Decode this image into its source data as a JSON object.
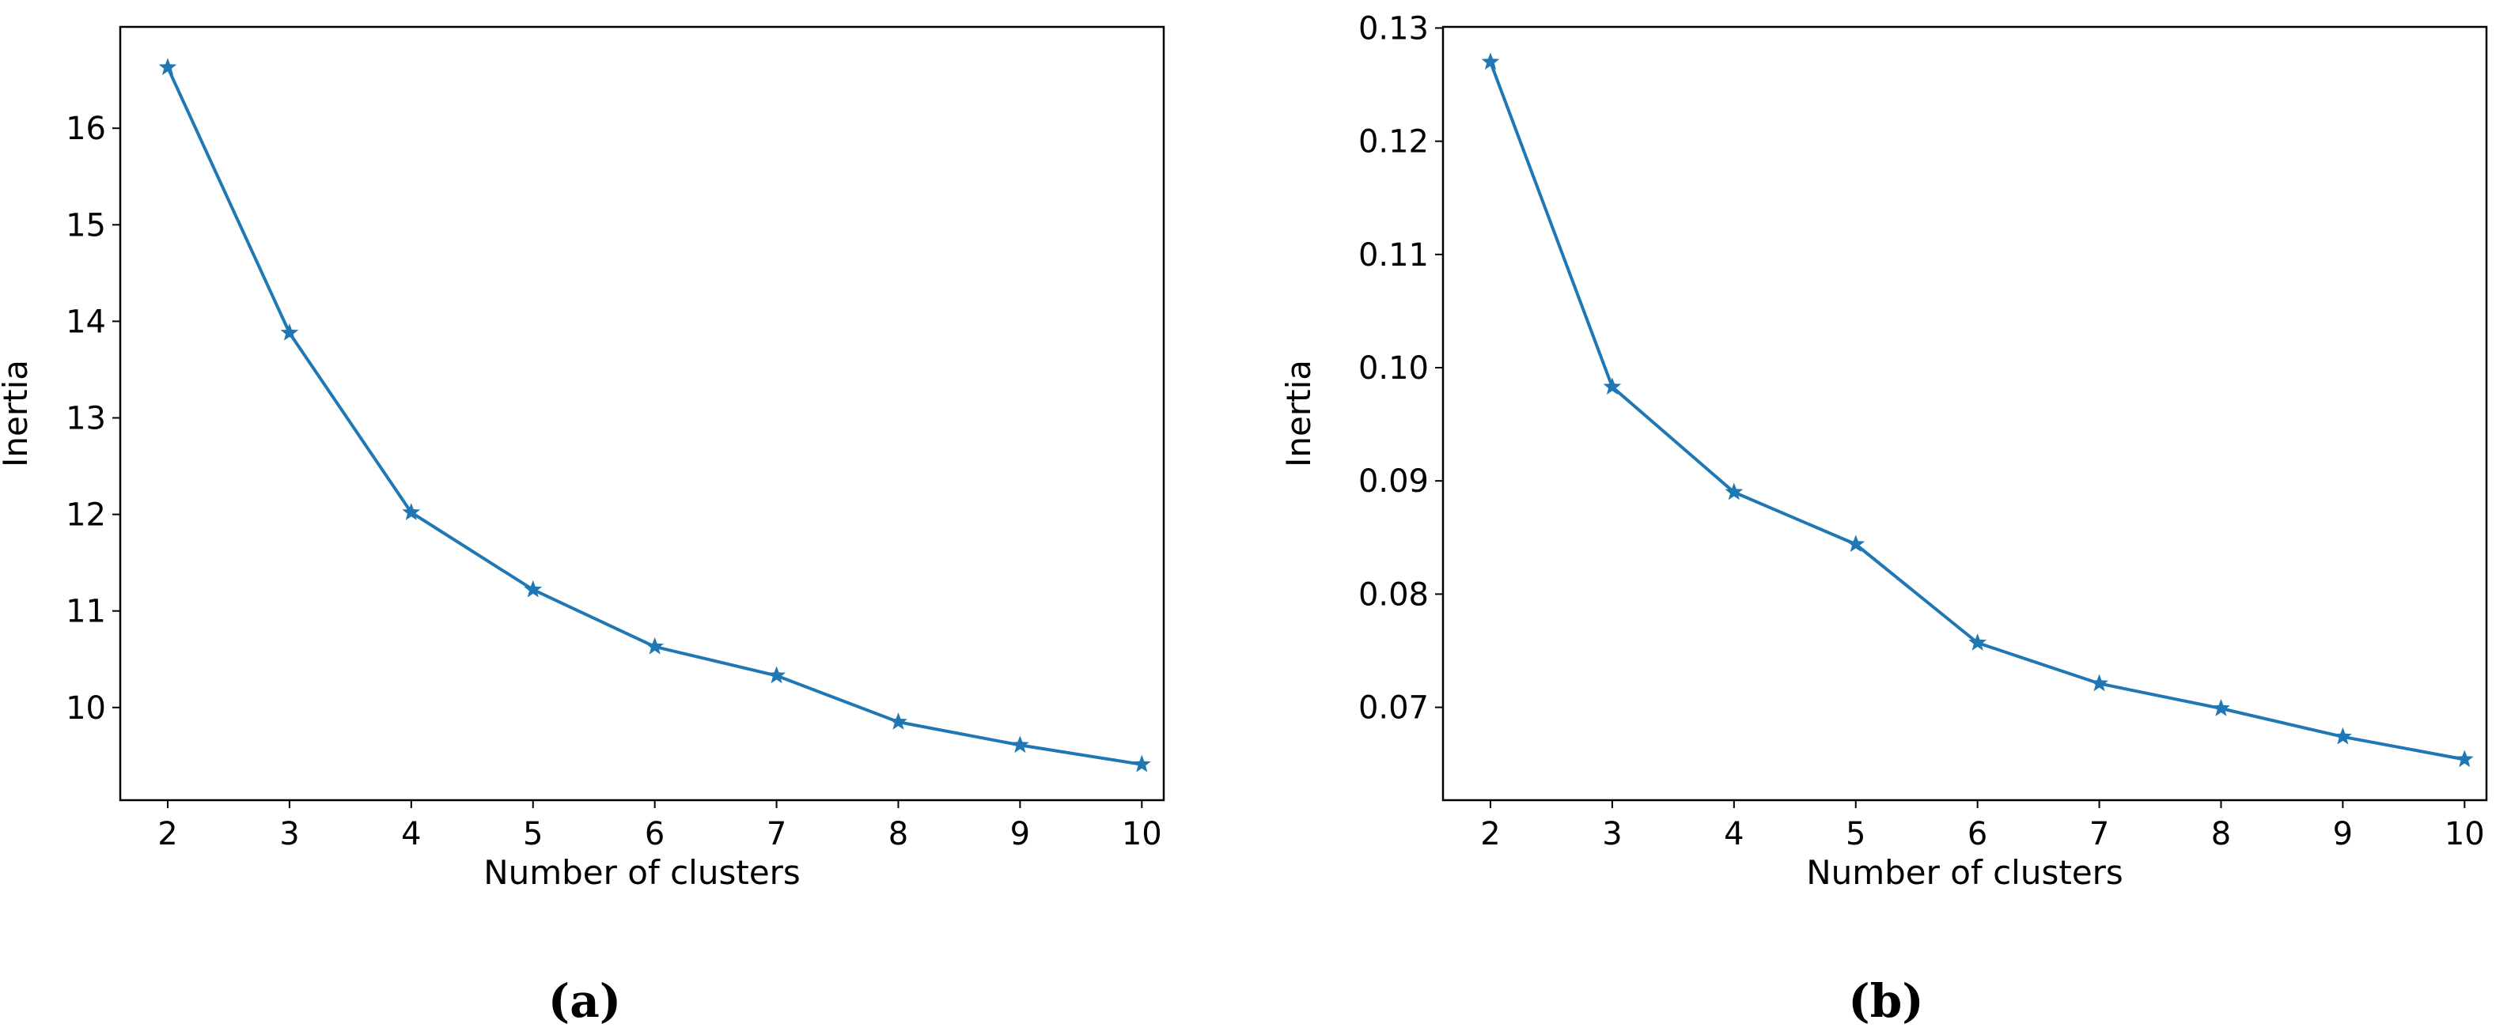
{
  "chart_data": [
    {
      "type": "line",
      "caption": "(a)",
      "xlabel": "Number of clusters",
      "ylabel": "Inertia",
      "x": [
        2,
        3,
        4,
        5,
        6,
        7,
        8,
        9,
        10
      ],
      "series": [
        {
          "name": "Inertia",
          "values": [
            16.63,
            13.88,
            12.02,
            11.22,
            10.63,
            10.33,
            9.85,
            9.61,
            9.41
          ],
          "color": "#1f77b4",
          "marker": "star"
        }
      ],
      "xticks": [
        "2",
        "3",
        "4",
        "5",
        "6",
        "7",
        "8",
        "9",
        "10"
      ],
      "yticks": [
        "10",
        "11",
        "12",
        "13",
        "14",
        "15",
        "16"
      ],
      "xlim": [
        1.61,
        10.18
      ],
      "ylim": [
        9.04,
        17.05
      ],
      "grid": false
    },
    {
      "type": "line",
      "caption": "(b)",
      "xlabel": "Number of clusters",
      "ylabel": "Inertia",
      "x": [
        2,
        3,
        4,
        5,
        6,
        7,
        8,
        9,
        10
      ],
      "series": [
        {
          "name": "Inertia",
          "values": [
            0.127,
            0.0983,
            0.089,
            0.0844,
            0.0757,
            0.0721,
            0.0699,
            0.0674,
            0.0654
          ],
          "color": "#1f77b4",
          "marker": "star"
        }
      ],
      "xticks": [
        "2",
        "3",
        "4",
        "5",
        "6",
        "7",
        "8",
        "9",
        "10"
      ],
      "yticks": [
        "0.07",
        "0.08",
        "0.09",
        "0.10",
        "0.11",
        "0.12",
        "0.13"
      ],
      "xlim": [
        1.61,
        10.18
      ],
      "ylim": [
        0.0618,
        0.1301
      ],
      "grid": false
    }
  ]
}
